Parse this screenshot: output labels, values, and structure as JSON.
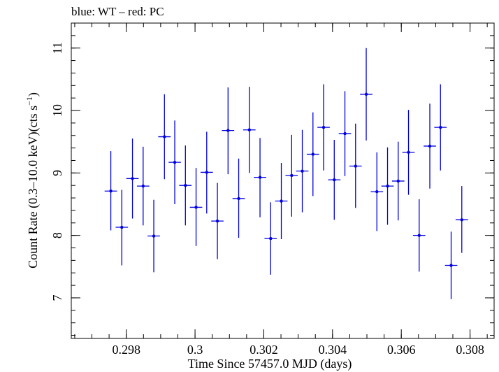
{
  "chart_data": {
    "type": "scatter",
    "title": "blue: WT – red: PC",
    "xlabel": "Time Since 57457.0 MJD (days)",
    "ylabel": "Count Rate (0.3–10.0 keV)(cts s",
    "ylabel_sup": "−1",
    "ylabel_end": ")",
    "xlim": [
      0.2964,
      0.3087
    ],
    "ylim": [
      6.35,
      11.4
    ],
    "x_ticks": [
      0.298,
      0.3,
      0.302,
      0.304,
      0.306,
      0.308
    ],
    "x_tick_labels": [
      "0.298",
      "0.3",
      "0.302",
      "0.304",
      "0.306",
      "0.308"
    ],
    "y_ticks": [
      7,
      8,
      9,
      10,
      11
    ],
    "y_tick_labels": [
      "7",
      "8",
      "9",
      "10",
      "11"
    ],
    "x_minor_step": 0.0005,
    "y_minor_step": 0.2,
    "grid": false,
    "legend": "none",
    "series": [
      {
        "color": "#0000e0",
        "points": [
          {
            "x": 0.29755,
            "y": 8.71,
            "xerr": 0.00018,
            "ylo": 8.08,
            "yhi": 9.35
          },
          {
            "x": 0.29787,
            "y": 8.13,
            "xerr": 0.00018,
            "ylo": 7.52,
            "yhi": 8.73
          },
          {
            "x": 0.29818,
            "y": 8.91,
            "xerr": 0.00018,
            "ylo": 8.27,
            "yhi": 9.55
          },
          {
            "x": 0.29849,
            "y": 8.79,
            "xerr": 0.00018,
            "ylo": 8.16,
            "yhi": 9.42
          },
          {
            "x": 0.2988,
            "y": 7.99,
            "xerr": 0.00018,
            "ylo": 7.41,
            "yhi": 8.57
          },
          {
            "x": 0.29911,
            "y": 9.58,
            "xerr": 0.00018,
            "ylo": 8.9,
            "yhi": 10.26
          },
          {
            "x": 0.29941,
            "y": 9.17,
            "xerr": 0.00018,
            "ylo": 8.5,
            "yhi": 9.84
          },
          {
            "x": 0.29972,
            "y": 8.8,
            "xerr": 0.00018,
            "ylo": 8.16,
            "yhi": 9.44
          },
          {
            "x": 0.30003,
            "y": 8.45,
            "xerr": 0.00018,
            "ylo": 7.83,
            "yhi": 9.08
          },
          {
            "x": 0.30034,
            "y": 9.01,
            "xerr": 0.00018,
            "ylo": 8.35,
            "yhi": 9.66
          },
          {
            "x": 0.30065,
            "y": 8.23,
            "xerr": 0.00018,
            "ylo": 7.62,
            "yhi": 8.84
          },
          {
            "x": 0.30096,
            "y": 9.68,
            "xerr": 0.00018,
            "ylo": 8.98,
            "yhi": 10.37
          },
          {
            "x": 0.30127,
            "y": 8.59,
            "xerr": 0.00018,
            "ylo": 7.96,
            "yhi": 9.23
          },
          {
            "x": 0.30158,
            "y": 9.69,
            "xerr": 0.00018,
            "ylo": 9.0,
            "yhi": 10.38
          },
          {
            "x": 0.30189,
            "y": 8.93,
            "xerr": 0.00018,
            "ylo": 8.29,
            "yhi": 9.56
          },
          {
            "x": 0.3022,
            "y": 7.95,
            "xerr": 0.00018,
            "ylo": 7.37,
            "yhi": 8.53
          },
          {
            "x": 0.30251,
            "y": 8.55,
            "xerr": 0.00018,
            "ylo": 7.94,
            "yhi": 9.16
          },
          {
            "x": 0.30281,
            "y": 8.96,
            "xerr": 0.00018,
            "ylo": 8.3,
            "yhi": 9.61
          },
          {
            "x": 0.30312,
            "y": 9.03,
            "xerr": 0.00018,
            "ylo": 8.37,
            "yhi": 9.69
          },
          {
            "x": 0.30343,
            "y": 9.3,
            "xerr": 0.00018,
            "ylo": 8.63,
            "yhi": 9.97
          },
          {
            "x": 0.30374,
            "y": 9.73,
            "xerr": 0.00018,
            "ylo": 9.04,
            "yhi": 10.42
          },
          {
            "x": 0.30405,
            "y": 8.89,
            "xerr": 0.00018,
            "ylo": 8.25,
            "yhi": 9.53
          },
          {
            "x": 0.30436,
            "y": 9.63,
            "xerr": 0.00018,
            "ylo": 8.95,
            "yhi": 10.31
          },
          {
            "x": 0.30467,
            "y": 9.11,
            "xerr": 0.00018,
            "ylo": 8.44,
            "yhi": 9.79
          },
          {
            "x": 0.30498,
            "y": 10.26,
            "xerr": 0.00018,
            "ylo": 9.52,
            "yhi": 11.0
          },
          {
            "x": 0.30529,
            "y": 8.7,
            "xerr": 0.00018,
            "ylo": 8.07,
            "yhi": 9.33
          },
          {
            "x": 0.3056,
            "y": 8.79,
            "xerr": 0.00018,
            "ylo": 8.17,
            "yhi": 9.41
          },
          {
            "x": 0.30591,
            "y": 8.87,
            "xerr": 0.00018,
            "ylo": 8.24,
            "yhi": 9.5
          },
          {
            "x": 0.30621,
            "y": 9.33,
            "xerr": 0.00018,
            "ylo": 8.65,
            "yhi": 10.01
          },
          {
            "x": 0.30652,
            "y": 8.0,
            "xerr": 0.00018,
            "ylo": 7.42,
            "yhi": 8.58
          },
          {
            "x": 0.30683,
            "y": 9.43,
            "xerr": 0.00018,
            "ylo": 8.75,
            "yhi": 10.11
          },
          {
            "x": 0.30714,
            "y": 9.73,
            "xerr": 0.00018,
            "ylo": 9.04,
            "yhi": 10.42
          },
          {
            "x": 0.30745,
            "y": 7.52,
            "xerr": 0.00018,
            "ylo": 6.98,
            "yhi": 8.06
          },
          {
            "x": 0.30776,
            "y": 8.25,
            "xerr": 0.00018,
            "ylo": 7.72,
            "yhi": 8.79
          }
        ]
      }
    ]
  }
}
